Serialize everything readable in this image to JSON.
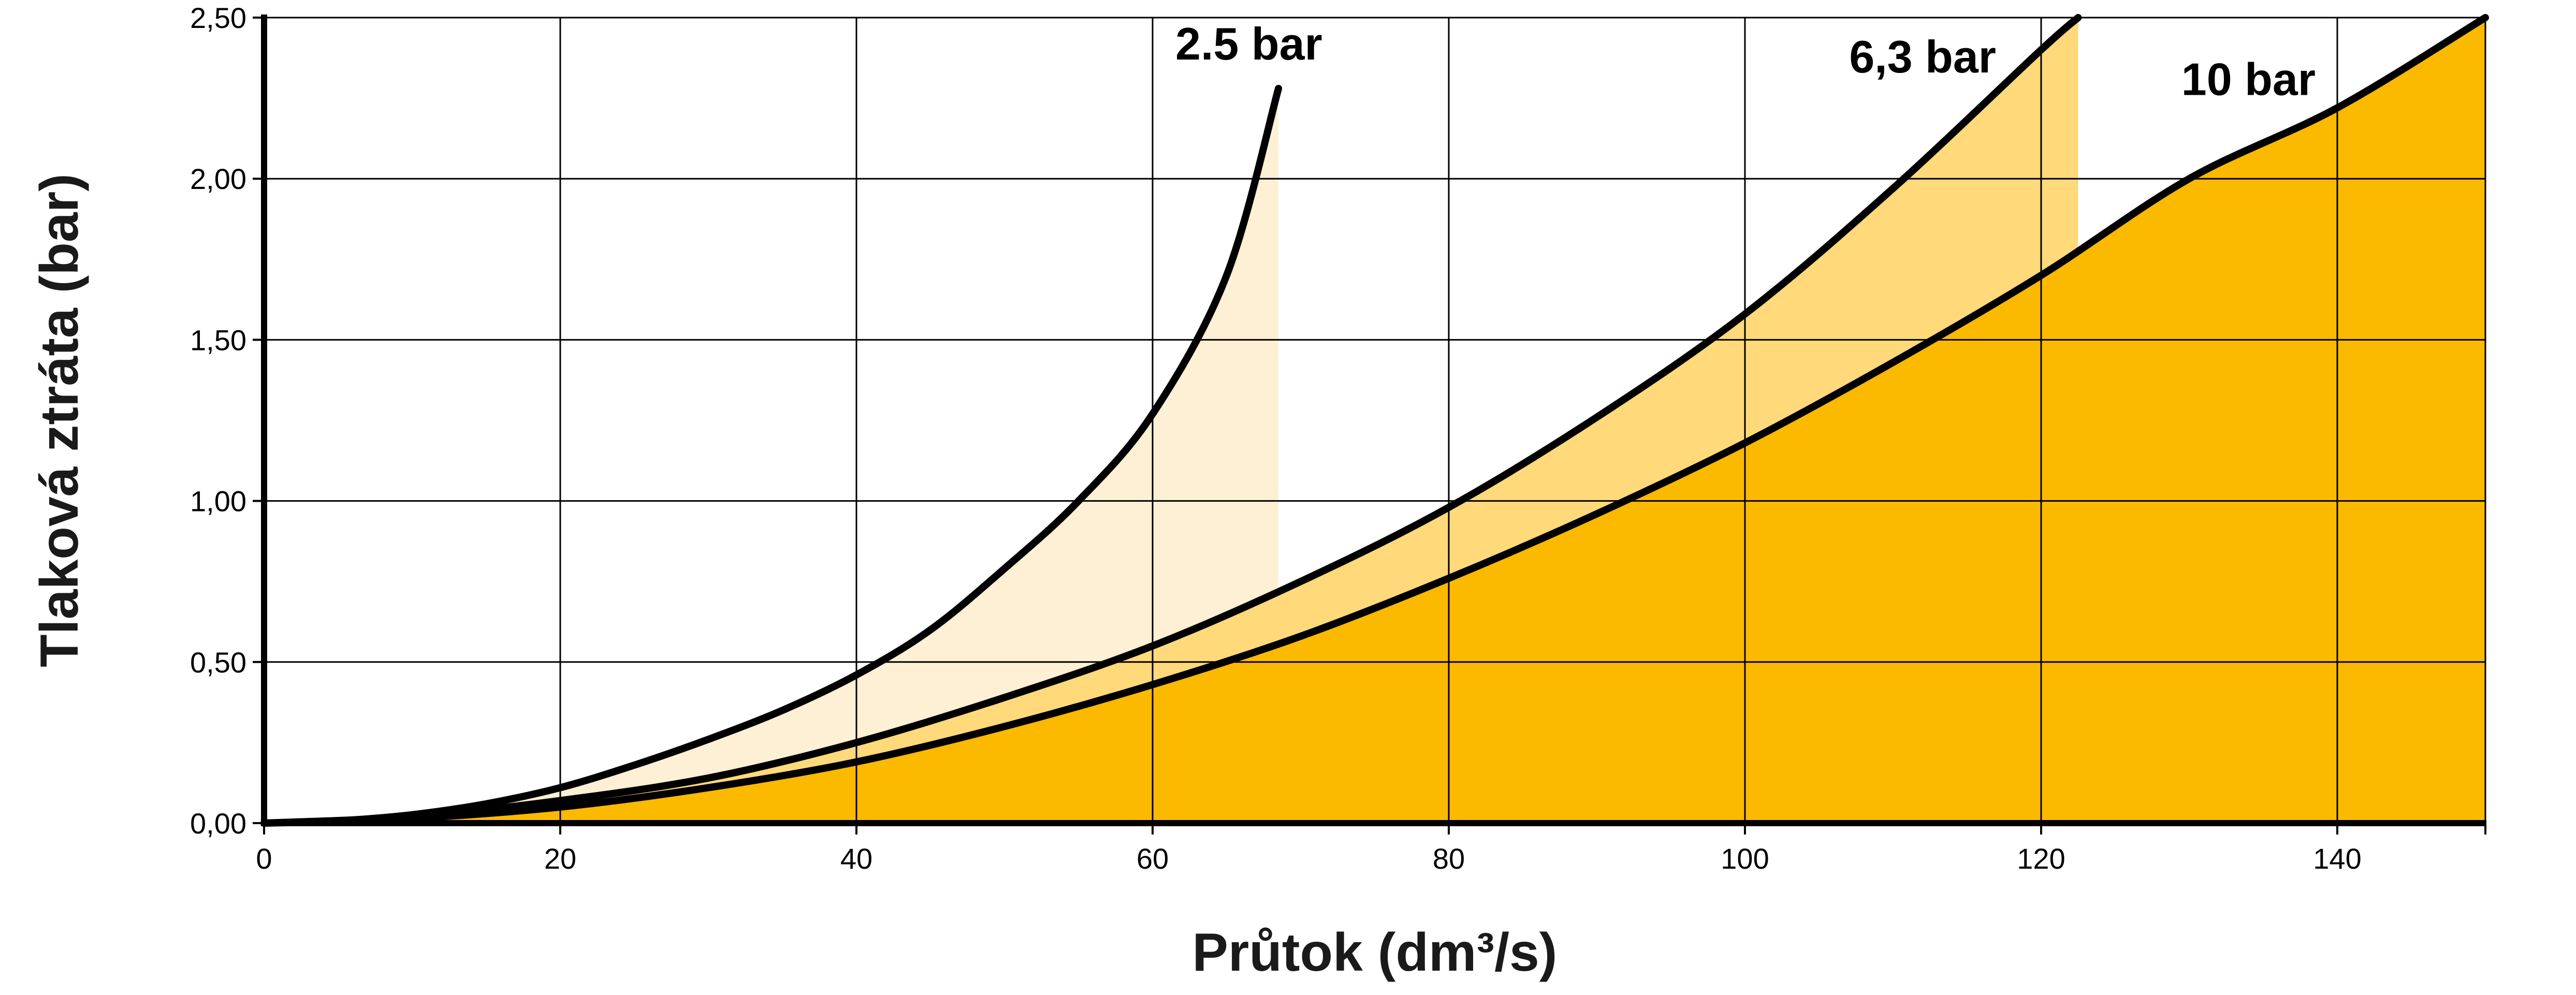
{
  "chart_data": {
    "type": "area",
    "xlabel": "Průtok (dm³/s)",
    "ylabel": "Tlaková ztráta (bar)",
    "xlim": [
      0,
      150
    ],
    "ylim": [
      0,
      2.5
    ],
    "x_ticks": [
      0,
      20,
      40,
      60,
      80,
      100,
      120,
      140
    ],
    "x_tick_labels": [
      "0",
      "20",
      "40",
      "60",
      "80",
      "100",
      "120",
      "140"
    ],
    "y_ticks": [
      0,
      0.5,
      1.0,
      1.5,
      2.0,
      2.5
    ],
    "y_tick_labels": [
      "0,00",
      "0,50",
      "1,00",
      "1,50",
      "2,00",
      "2,50"
    ],
    "grid": true,
    "series": [
      {
        "name": "2.5 bar",
        "fill": "#FEF0D4",
        "x": [
          0,
          5,
          10,
          15,
          20,
          25,
          30,
          35,
          40,
          45,
          50,
          55,
          60,
          65,
          68.5
        ],
        "y": [
          0,
          0.007,
          0.026,
          0.06,
          0.11,
          0.18,
          0.26,
          0.35,
          0.46,
          0.6,
          0.79,
          1.0,
          1.27,
          1.7,
          2.28
        ]
      },
      {
        "name": "6,3 bar",
        "fill": "#FFD97A",
        "x": [
          0,
          10,
          20,
          30,
          40,
          50,
          60,
          70,
          80,
          90,
          100,
          110,
          120,
          122.5
        ],
        "y": [
          0,
          0.02,
          0.07,
          0.14,
          0.25,
          0.39,
          0.55,
          0.75,
          0.98,
          1.26,
          1.58,
          1.97,
          2.4,
          2.5
        ]
      },
      {
        "name": "10 bar",
        "fill": "#FBB900",
        "x": [
          0,
          10,
          20,
          30,
          40,
          50,
          60,
          70,
          80,
          90,
          100,
          110,
          120,
          130,
          140,
          150
        ],
        "y": [
          0,
          0.015,
          0.05,
          0.11,
          0.19,
          0.3,
          0.43,
          0.58,
          0.76,
          0.96,
          1.18,
          1.43,
          1.7,
          2.0,
          2.22,
          2.5
        ]
      }
    ]
  }
}
